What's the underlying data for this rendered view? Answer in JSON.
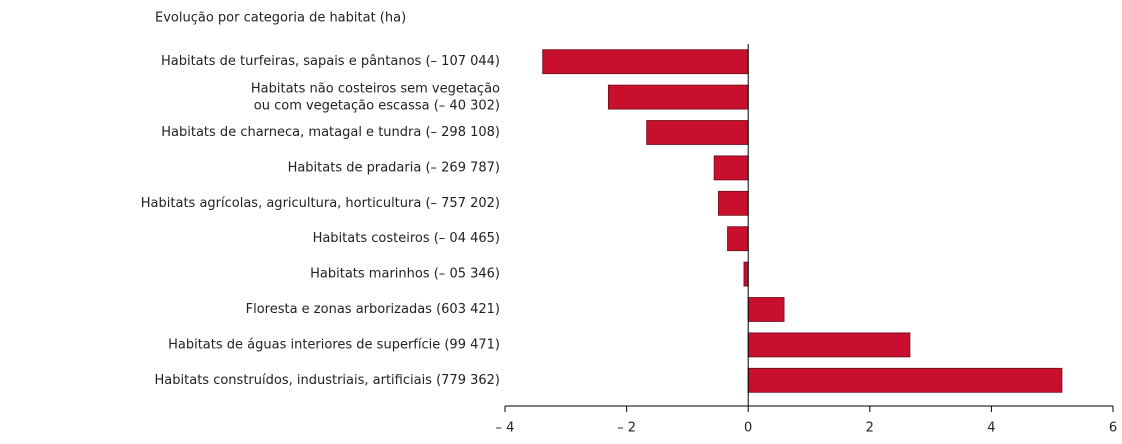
{
  "chart_data": {
    "type": "bar",
    "orientation": "horizontal",
    "title": "Evolução por categoria de habitat (ha)",
    "categories": [
      "Habitats de turfeiras, sapais e pântanos  (– 107 044)",
      [
        "Habitats não costeiros sem vegetação",
        "ou com vegetação escassa  (– 40 302)"
      ],
      "Habitats de charneca, matagal e tundra (– 298 108)",
      "Habitats de pradaria (– 269 787)",
      "Habitats agrícolas, agricultura, horticultura (– 757 202)",
      "Habitats costeiros (– 04 465)",
      "Habitats marinhos (– 05 346)",
      "Floresta e zonas arborizadas (603 421)",
      "Habitats de águas interiores de superfície (99 471)",
      "Habitats construídos, industriais, artificiais (779 362)"
    ],
    "values": [
      -3.38,
      -2.3,
      -1.67,
      -0.56,
      -0.49,
      -0.34,
      -0.07,
      0.59,
      2.66,
      5.16
    ],
    "color": "#c8102e",
    "xlim": [
      -4,
      6
    ],
    "xticks": [
      {
        "value": -4,
        "label": "– 4"
      },
      {
        "value": -2,
        "label": "– 2"
      },
      0,
      2,
      4,
      6
    ]
  }
}
